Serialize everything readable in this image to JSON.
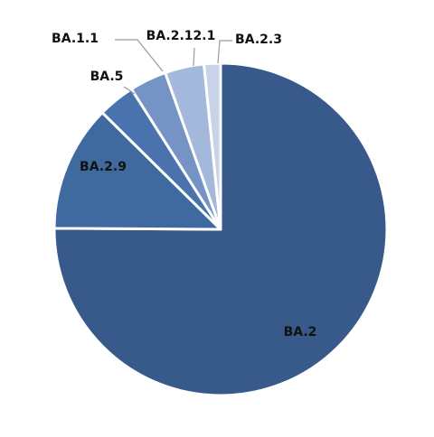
{
  "chart_data": {
    "type": "pie",
    "title": "",
    "slices": [
      {
        "label": "BA.2",
        "value": 75.1,
        "color": "#375A8A"
      },
      {
        "label": "BA.2.9",
        "value": 12.3,
        "color": "#3E6AA0"
      },
      {
        "label": "BA.5",
        "value": 3.6,
        "color": "#4A73AD"
      },
      {
        "label": "BA.1.1",
        "value": 3.6,
        "color": "#7593C5"
      },
      {
        "label": "BA.2.12.1",
        "value": 3.8,
        "color": "#A3B8DA"
      },
      {
        "label": "BA.2.3",
        "value": 1.6,
        "color": "#C7D3E8"
      }
    ],
    "start_angle_deg": 0,
    "direction": "clockwise",
    "legend": "none",
    "grid": false
  }
}
